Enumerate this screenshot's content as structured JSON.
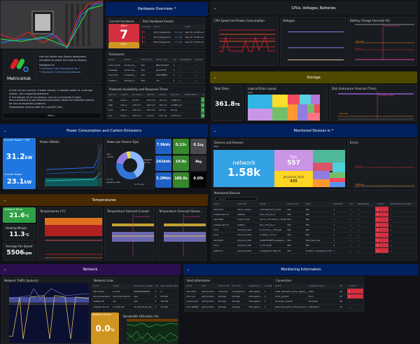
{
  "intro": {
    "logo_text": "MetricsHub",
    "use_text": "Use the $sites and $hosts dashboard variables to select the host to display.",
    "navigate": "Navigate to:",
    "links": [
      "Hardware Site Dashboard for *",
      "Hardware Overview Dashboard"
    ],
    "bullets": [
      "A host can be a server, a blade chassis, a network switch or a storage system. See supported platforms.",
      "In the bottom list of connectors, click on a connector's [View documentation] to get detailed information about the collected metrics for the corresponding platform.",
      "Troubleshoot missing data for a specific host."
    ],
    "more": "More ⌄"
  },
  "hardware": {
    "header": "Hardware Overview: *",
    "current_title": "Current Hardware ...",
    "alert_label": "Alert",
    "alert_value": "7",
    "warn_label": "Warn",
    "warn_value": "0",
    "events_title": "Past Hardware Events",
    "events_cols": [
      "SOURCE",
      "TITLE",
      "",
      "DATE"
    ],
    "events": [
      [
        "[PK] [Triggered]...",
        "10 logs",
        "Sep 20, 10:08 am"
      ],
      [
        "[PK] [Triggered]...",
        "10 logs",
        "Sep 20, 10:08 am"
      ],
      [
        "[PK] [Triggered]...",
        "11 logs",
        "Sep 20, 10:08 am"
      ]
    ],
    "enclosures_title": "Enclosures",
    "enclosures_cols": [
      "HOST",
      "NAME",
      "DEVICE_ID",
      "SERIAL_NU...",
      "OK",
      "DEGRADED",
      "FAILED"
    ],
    "enclosures": [
      [
        "clevo-myth",
        "enclosure_...",
        "N/A",
        "BJG7231424",
        "1",
        "—",
        "—"
      ],
      [
        "bobbage",
        "enclosure_...",
        "N/A",
        "ybn03478",
        "1",
        "—",
        "—"
      ],
      [
        "dev-hc01",
        "computer_...",
        "N/A",
        "CQ07B8BV",
        "1",
        "—",
        "—"
      ],
      [
        "huawei-...",
        "storage_h...",
        "N/A",
        "n/a",
        "1",
        "—",
        "—"
      ]
    ],
    "protocols_title": "Protocols Availability and Response Times",
    "protocols_cols": [
      "PROTO...",
      "AGENT...",
      "UP POSSI...",
      "MIN RE...",
      "AVERA...",
      "MAX RE...",
      "RESPONSE T...",
      "UP"
    ],
    "protocols": [
      [
        "http",
        "mtb-a...",
        "95.8 %",
        "45.0 ms",
        "167 ms",
        "1,808 ms",
        "",
        "5"
      ],
      [
        "http",
        "mtb-a...",
        "100.0 %",
        "36.0 ms",
        "155 ms",
        "13,889 ms",
        "",
        "5"
      ],
      [
        "ipmi",
        "mtb-a...",
        "100.0 %",
        "45.0 ms",
        "54 ms",
        "80 ms",
        "",
        "5"
      ],
      [
        "jmx",
        "mtb-a...",
        "100.0 %",
        "4.0 ms",
        "412 ms",
        "2,376 ms",
        "",
        "5"
      ]
    ]
  },
  "cpu": {
    "header": "CPUs, Voltages, Batteries",
    "cpu_title": "CPU Speed and Power Consumption",
    "volt_title": "Voltages",
    "battery_title": "Battery Charge Forecast (%)",
    "forecast_label": "Forecast (30d)",
    "warning": "Warning",
    "alarm": "Alarm",
    "cpu_series": [
      [
        30,
        28,
        70,
        32,
        30,
        30,
        31,
        28,
        60,
        30,
        28,
        70,
        32,
        50,
        72,
        30,
        30,
        32
      ]
    ],
    "volt_lines": [
      [
        0.85
      ],
      [
        0.4
      ],
      [
        0.05
      ]
    ]
  },
  "storage": {
    "header": "Storage",
    "total_title": "Total Disks",
    "total_value": "361.8",
    "total_unit": "TB",
    "layout_title": "Logical Disks Layout",
    "layout_total": "Total",
    "endurance_title": "Disk Endurance Forecast (Time)",
    "warning": "Warning",
    "forecast": "Forecast (30d)"
  },
  "power": {
    "header": "Power Consumption and Carbon Emissions",
    "current_pue_title": "Current Power * PUE",
    "current_pue_value": "31.2",
    "current_pue_unit": "kW",
    "current_title": "Current Power",
    "current_value": "23.1",
    "current_unit": "kW",
    "chart_title": "Power (Watts)",
    "device_title": "Power per Device Type",
    "pie": [
      {
        "label": "network",
        "pct": 42.1,
        "color": "#8ab8ff"
      },
      {
        "label": "fan",
        "pct": 35.5,
        "color": "#3274d9"
      },
      {
        "label": "physical_disk",
        "pct": 17.7,
        "color": "#8f7ee0"
      },
      {
        "label": "cpu",
        "pct": 4.7,
        "color": "#fade2a"
      }
    ],
    "pie_labels": [
      "fan 35.5%",
      "network 42.1%",
      "17.7% physical_disk",
      "4.7% cpu"
    ],
    "tiles": [
      {
        "v": "7.9k",
        "u": "Wh",
        "c": "#1f60c4"
      },
      {
        "v": "0.12",
        "u": "$",
        "c": "#37872d"
      },
      {
        "v": "0.1",
        "u": "kg",
        "c": "#4a4a4f"
      },
      {
        "v": "241k",
        "u": "Wh",
        "c": "#1f60c4"
      },
      {
        "v": "10.8",
        "u": "$",
        "c": "#37872d"
      },
      {
        "v": "4",
        "u": "kg",
        "c": "#2b2b30"
      },
      {
        "v": "3.2M",
        "u": "Wh",
        "c": "#1f60c4"
      },
      {
        "v": "186.0",
        "u": "$",
        "c": "#37872d"
      },
      {
        "v": "0.05",
        "u": "t",
        "c": "#050505"
      }
    ]
  },
  "temps": {
    "header": "Temperatures",
    "ambient_title": "Ambient Temp.",
    "ambient_value": "21.6",
    "ambient_unit": "°C",
    "margin_title": "Heating Margin",
    "margin_value": "11.3",
    "margin_unit": "°C",
    "fan_title": "Average Fan Speed",
    "fan_value": "5506",
    "fan_unit": "rpm",
    "chart_title": "Temperatures (°C)",
    "forecast_linear": "Temperature Forecast (Linear)",
    "forecast_seasonal": "Temperature Forecast (Seaso...",
    "forecast_label": "Forecast (30d)"
  },
  "devices": {
    "header": "Monitored Devices in *",
    "sensors_title": "Devices and Sensors",
    "total": "Total",
    "treemap": [
      {
        "name": "network",
        "value": "1.58k",
        "color": "#33a2e5"
      },
      {
        "name": "fan",
        "value": "557",
        "color": "#ca95e5"
      },
      {
        "name": "physical_disk",
        "value": "435",
        "color": "#ffd523"
      }
    ],
    "errors_title": "Errors",
    "alarm": "Alarm",
    "warning": "Warning",
    "table_title": "Monitored Devices",
    "search_placeholder": "Search",
    "cols": [
      "HOST",
      "HWTYPE",
      "NAME",
      "DEVICE_ID",
      "INFO",
      "PRESENT",
      "OK",
      "DEGRADED",
      "FAILED",
      "PREDICTED FAILURE"
    ],
    "rows": [
      [
        "alarmer8",
        "other_device",
        "controllercard_cm01",
        "N/A",
        "N/A",
        "1",
        "—",
        "—",
        "1",
        "—"
      ],
      [
        "huawei-san-01",
        "battery",
        "bbu_ctrl_pos_0",
        "N/A",
        "N/A",
        "1",
        "—",
        "—",
        "1",
        "—"
      ],
      [
        "sap-ipt00",
        "logical_disk",
        "101.1_unit.name_r_10.98_gib",
        "N/A",
        "N/A",
        "—",
        "—",
        "—",
        "1",
        "—"
      ],
      [
        "huawei-san-01",
        "battery",
        "bbu_ctrl_pos_1",
        "N/A",
        "N/A",
        "1",
        "—",
        "—",
        "1",
        "—"
      ],
      [
        "linux",
        "physical_disk",
        "8_volume_r_75.8_gb",
        "N/A",
        "N/A",
        "1",
        "—",
        "—",
        "1",
        "—"
      ],
      [
        "linux",
        "physical_disk",
        "3_swap_r_0.5_b",
        "N/A",
        "N/A",
        "1",
        "—",
        "—",
        "1",
        "—"
      ],
      [
        "alarmer8",
        "physical_disk",
        "defe0h0h883_seagate_r_1000_5...",
        "N/A",
        "disk_type_sas",
        "1",
        "—",
        "—",
        "1",
        "—"
      ],
      [
        "linux",
        "physical_disk",
        "5_127.8_gb",
        "N/A",
        "N/A",
        "1",
        "—",
        "—",
        "1",
        "—"
      ],
      [
        "netsimr2",
        "physical_disk",
        "unassigned disks: 8",
        "N/A",
        "location: unassigned disks: 8",
        "1",
        "—",
        "—",
        "1",
        "—"
      ]
    ]
  },
  "network": {
    "header": "Network",
    "traffic_title": "Network Traffic (bytes/s)",
    "links_title": "Network Links",
    "links_cols": [
      "HOST",
      "NAME",
      "PHYSICAL_ADDRE...",
      "UP",
      "LINK SPEED (B/S)"
    ],
    "links": [
      [
        "lab-cluster",
        "lo_lnet",
        "000000000000",
        "4",
        "0"
      ],
      [
        "emc-powerstore",
        "fportcard-fsport...",
        "N/A",
        "2",
        "25,600"
      ],
      [
        "netapp-aff",
        "ela",
        "N/A",
        "2",
        "100 Mb"
      ],
      [
        "netgear-dev-11",
        "8_ethernet",
        "34_98_b5_64_ee...",
        "2",
        "25,600"
      ]
    ],
    "errors_title": "Network Errors",
    "errors_value": "0.0",
    "errors_unit": "%",
    "bandwidth_title": "Bandwidth Utilization (%)"
  },
  "monitoring": {
    "header": "Monitoring Information",
    "host_title": "Host Information",
    "host_cols": [
      "HOST",
      "SITE",
      "HOSTTYPE",
      "OS.TYPE",
      "AGENT.HO...",
      "CONNECTO..."
    ],
    "hosts": [
      [
        "dev-cb03",
        "sentry-blde...",
        "compute",
        "manageme...",
        "mtb-agent...",
        "1"
      ],
      [
        "emc-vnx",
        "sentry-blde...",
        "storage",
        "storage",
        "mtb-agent...",
        "1"
      ],
      [
        "powervault",
        "sentry-blde...",
        "storage",
        "storage",
        "mtb-agent...",
        "1"
      ],
      [
        "ibm-ds8882",
        "sentry-blde...",
        "storage",
        "storage",
        "mtb-agent...",
        "1"
      ]
    ],
    "conn_title": "Connectors",
    "conn_cols": [
      "NAME",
      "CONNECTOR_ID",
      "OK",
      "FAILED"
    ],
    "conns": [
      [
        "mib2_standard_snmp_agent_-_network_inter...",
        "mib2",
        "26",
        "1"
      ],
      [
        "linux_system",
        "linux",
        "26",
        "1"
      ],
      [
        "windows_system",
        "windows",
        "56",
        "—"
      ],
      [
        "ethernet_switch_with_sensors_snmp",
        "mibSwitch",
        "13",
        "—"
      ]
    ]
  },
  "colors": {
    "navy": "#012060",
    "olive": "#4f4800",
    "brown": "#472800",
    "purple": "#2b0f4f",
    "alert": "#d32f3f",
    "warn": "#e0a020"
  }
}
